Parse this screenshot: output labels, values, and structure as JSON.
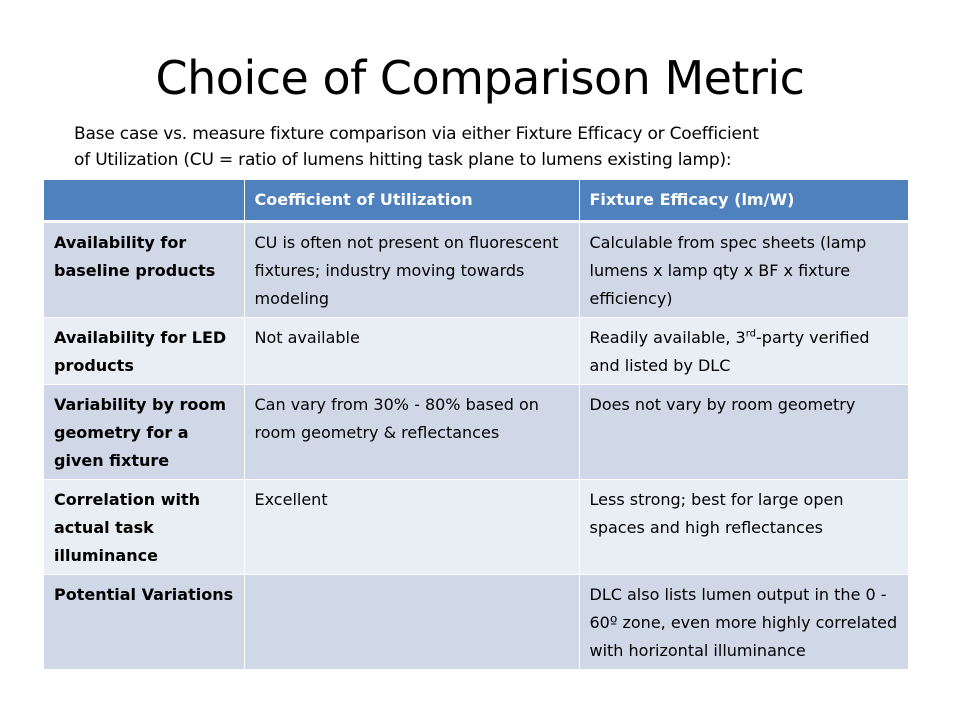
{
  "title": "Choice of Comparison Metric",
  "subtitle_line1": "Base case vs. measure fixture comparison via either Fixture Efficacy or Coefficient",
  "subtitle_line2": "of Utilization (CU = ratio of lumens hitting task plane to lumens existing lamp):",
  "table": {
    "headers": [
      "",
      "Coefficient of Utilization",
      "Fixture Efficacy (lm/W)"
    ],
    "rows": [
      {
        "label": "Availability for baseline products",
        "cu": "CU is often not present on fluorescent fixtures; industry moving towards modeling",
        "fe": "Calculable from spec sheets (lamp lumens x lamp qty x BF x fixture efficiency)"
      },
      {
        "label": "Availability for LED products",
        "cu": "Not available",
        "fe_pre": "Readily available, 3",
        "fe_sup": "rd",
        "fe_post": "-party verified and listed by DLC"
      },
      {
        "label": "Variability by room geometry for a given fixture",
        "cu": "Can vary from 30% - 80% based on room geometry & reflectances",
        "fe": "Does not vary by room geometry"
      },
      {
        "label": "Correlation with actual task illuminance",
        "cu": "Excellent",
        "fe": "Less strong; best for large open spaces and high reflectances"
      },
      {
        "label": "Potential Variations",
        "cu": "",
        "fe": "DLC also lists lumen output in the 0 - 60º zone, even more highly correlated with horizontal illuminance"
      }
    ]
  },
  "colors": {
    "header_bg": "#4f81bd",
    "row_dark": "#d0d8e8",
    "row_light": "#e9edf4"
  }
}
